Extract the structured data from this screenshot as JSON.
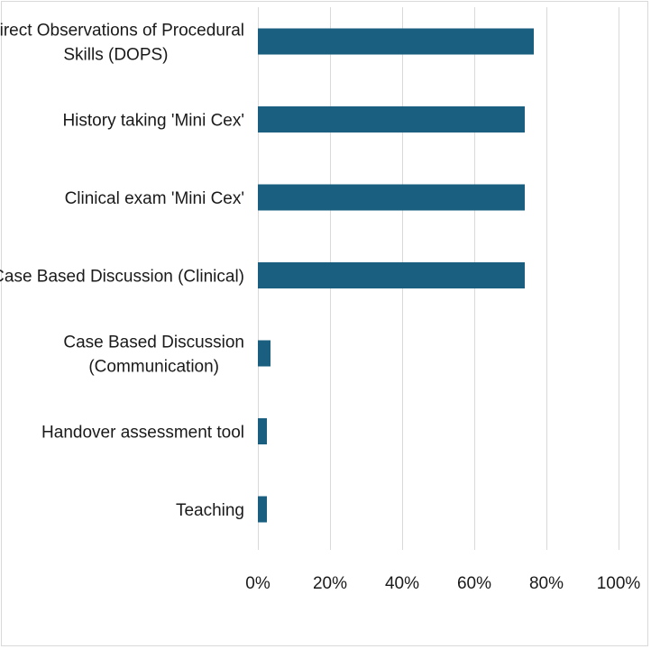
{
  "chart_data": {
    "type": "bar",
    "orientation": "horizontal",
    "categories": [
      [
        "Direct Observations of Procedural",
        "Skills (DOPS)"
      ],
      [
        "History taking 'Mini Cex'"
      ],
      [
        "Clinical exam 'Mini Cex'"
      ],
      [
        "Case Based Discussion (Clinical)"
      ],
      [
        "Case Based Discussion",
        "(Communication)"
      ],
      [
        "Handover assessment tool"
      ],
      [
        "Teaching"
      ]
    ],
    "values": [
      76.5,
      74,
      74,
      74,
      3.5,
      2.5,
      2.5
    ],
    "xlim": [
      0,
      100
    ],
    "xticks": [
      0,
      20,
      40,
      60,
      80,
      100
    ],
    "xtick_labels": [
      "0%",
      "20%",
      "40%",
      "60%",
      "80%",
      "100%"
    ],
    "grid": true,
    "bar_color": "#1a5f7f",
    "title": "",
    "xlabel": "",
    "ylabel": ""
  }
}
